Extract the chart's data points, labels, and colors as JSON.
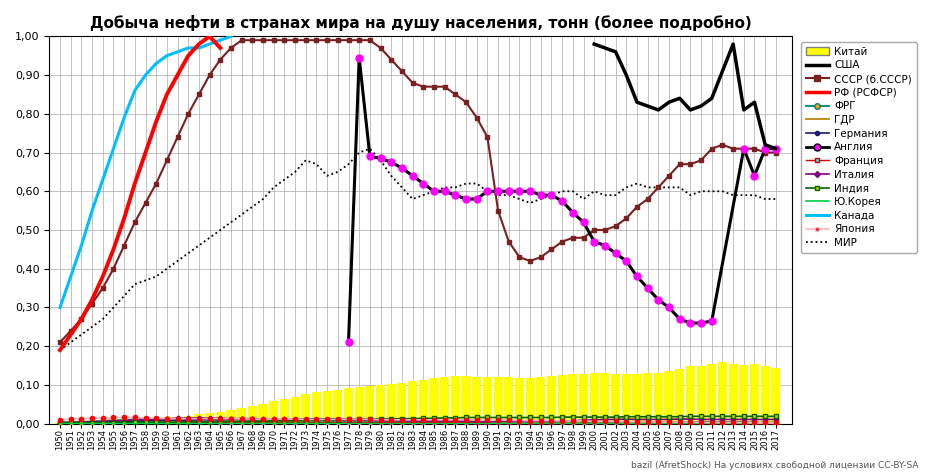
{
  "title": "Добыча нефти в странах мира на душу населения, тонн (более подробно)",
  "years": [
    1950,
    1951,
    1952,
    1953,
    1954,
    1955,
    1956,
    1957,
    1958,
    1959,
    1960,
    1961,
    1962,
    1963,
    1964,
    1965,
    1966,
    1967,
    1968,
    1969,
    1970,
    1971,
    1972,
    1973,
    1974,
    1975,
    1976,
    1977,
    1978,
    1979,
    1980,
    1981,
    1982,
    1983,
    1984,
    1985,
    1986,
    1987,
    1988,
    1989,
    1990,
    1991,
    1992,
    1993,
    1994,
    1995,
    1996,
    1997,
    1998,
    1999,
    2000,
    2001,
    2002,
    2003,
    2004,
    2005,
    2006,
    2007,
    2008,
    2009,
    2010,
    2011,
    2012,
    2013,
    2014,
    2015,
    2016,
    2017
  ],
  "china_bars": [
    0.003,
    0.004,
    0.005,
    0.006,
    0.008,
    0.009,
    0.011,
    0.013,
    0.013,
    0.013,
    0.015,
    0.018,
    0.021,
    0.025,
    0.027,
    0.031,
    0.036,
    0.04,
    0.046,
    0.052,
    0.058,
    0.064,
    0.07,
    0.077,
    0.083,
    0.084,
    0.087,
    0.091,
    0.094,
    0.098,
    0.1,
    0.103,
    0.106,
    0.109,
    0.113,
    0.117,
    0.12,
    0.122,
    0.122,
    0.121,
    0.12,
    0.12,
    0.12,
    0.117,
    0.117,
    0.12,
    0.123,
    0.125,
    0.127,
    0.127,
    0.13,
    0.13,
    0.128,
    0.127,
    0.127,
    0.13,
    0.13,
    0.135,
    0.14,
    0.148,
    0.15,
    0.155,
    0.16,
    0.155,
    0.152,
    0.155,
    0.15,
    0.145
  ],
  "ussr_years": [
    1950,
    1951,
    1952,
    1953,
    1954,
    1955,
    1956,
    1957,
    1958,
    1959,
    1960,
    1961,
    1962,
    1963,
    1964,
    1965,
    1966,
    1967,
    1968,
    1969,
    1970,
    1971,
    1972,
    1973,
    1974,
    1975,
    1976,
    1977,
    1978,
    1979,
    1980,
    1981,
    1982,
    1983,
    1984,
    1985,
    1986,
    1987,
    1988,
    1989,
    1990,
    1991,
    1992,
    1993,
    1994,
    1995,
    1996,
    1997,
    1998,
    1999,
    2000,
    2001,
    2002,
    2003,
    2004,
    2005,
    2006,
    2007,
    2008,
    2009,
    2010,
    2011,
    2012,
    2013,
    2014,
    2015,
    2016,
    2017
  ],
  "ussr_vals": [
    0.21,
    0.24,
    0.27,
    0.31,
    0.35,
    0.4,
    0.46,
    0.52,
    0.57,
    0.62,
    0.68,
    0.74,
    0.8,
    0.85,
    0.9,
    0.94,
    0.97,
    0.99,
    0.99,
    0.99,
    0.99,
    0.99,
    0.99,
    0.99,
    0.99,
    0.99,
    0.99,
    0.99,
    0.99,
    0.99,
    0.97,
    0.94,
    0.91,
    0.88,
    0.87,
    0.87,
    0.87,
    0.85,
    0.83,
    0.79,
    0.74,
    0.55,
    0.47,
    0.43,
    0.42,
    0.43,
    0.45,
    0.47,
    0.48,
    0.48,
    0.5,
    0.5,
    0.51,
    0.53,
    0.56,
    0.58,
    0.61,
    0.64,
    0.67,
    0.67,
    0.68,
    0.71,
    0.72,
    0.71,
    0.71,
    0.71,
    0.7,
    0.7
  ],
  "rf_years": [
    1950,
    1951,
    1952,
    1953,
    1954,
    1955,
    1956,
    1957,
    1958,
    1959,
    1960,
    1961,
    1962,
    1963,
    1964,
    1965
  ],
  "rf_vals": [
    0.19,
    0.23,
    0.27,
    0.32,
    0.38,
    0.45,
    0.53,
    0.62,
    0.7,
    0.78,
    0.85,
    0.9,
    0.95,
    0.98,
    1.0,
    0.97
  ],
  "canada_years": [
    1950,
    1951,
    1952,
    1953,
    1954,
    1955,
    1956,
    1957,
    1958,
    1959,
    1960,
    1961,
    1962,
    1963,
    1964,
    1965,
    1966
  ],
  "canada_vals": [
    0.3,
    0.38,
    0.46,
    0.55,
    0.63,
    0.71,
    0.79,
    0.86,
    0.9,
    0.93,
    0.95,
    0.96,
    0.97,
    0.97,
    0.98,
    0.99,
    1.0
  ],
  "england_years": [
    1977,
    1978,
    1979,
    1980,
    1981,
    1982,
    1983,
    1984,
    1985,
    1986,
    1987,
    1988,
    1989,
    1990,
    1991,
    1992,
    1993,
    1994,
    1995,
    1996,
    1997,
    1998,
    1999,
    2000,
    2001,
    2002,
    2003,
    2004,
    2005,
    2006,
    2007,
    2008,
    2009,
    2010,
    2011,
    2014,
    2015,
    2016,
    2017
  ],
  "england_vals": [
    0.21,
    0.945,
    0.69,
    0.685,
    0.675,
    0.66,
    0.64,
    0.62,
    0.6,
    0.6,
    0.59,
    0.58,
    0.58,
    0.6,
    0.6,
    0.6,
    0.6,
    0.6,
    0.59,
    0.59,
    0.575,
    0.545,
    0.52,
    0.47,
    0.46,
    0.44,
    0.42,
    0.38,
    0.35,
    0.32,
    0.3,
    0.27,
    0.26,
    0.26,
    0.265,
    0.71,
    0.64,
    0.71,
    0.71
  ],
  "world_vals": [
    0.19,
    0.21,
    0.23,
    0.25,
    0.27,
    0.3,
    0.33,
    0.36,
    0.37,
    0.38,
    0.4,
    0.42,
    0.44,
    0.46,
    0.48,
    0.5,
    0.52,
    0.54,
    0.56,
    0.58,
    0.61,
    0.63,
    0.65,
    0.68,
    0.67,
    0.64,
    0.65,
    0.67,
    0.7,
    0.71,
    0.68,
    0.64,
    0.61,
    0.58,
    0.59,
    0.6,
    0.61,
    0.61,
    0.62,
    0.62,
    0.6,
    0.59,
    0.59,
    0.58,
    0.57,
    0.58,
    0.59,
    0.6,
    0.6,
    0.58,
    0.6,
    0.59,
    0.59,
    0.61,
    0.62,
    0.61,
    0.61,
    0.61,
    0.61,
    0.59,
    0.6,
    0.6,
    0.6,
    0.59,
    0.59,
    0.59,
    0.58,
    0.58
  ],
  "frg_years": [
    1952,
    1953,
    1954,
    1955,
    1956,
    1957,
    1958,
    1959,
    1960,
    1961,
    1962,
    1963,
    1964,
    1965,
    1966,
    1967,
    1968,
    1969,
    1970,
    1971,
    1972,
    1973,
    1974,
    1975,
    1976,
    1977,
    1978,
    1979,
    1980,
    1981,
    1982,
    1983,
    1984,
    1985,
    1986,
    1987,
    1988,
    1989,
    1990
  ],
  "frg_vals": [
    0.005,
    0.006,
    0.007,
    0.009,
    0.01,
    0.011,
    0.012,
    0.012,
    0.013,
    0.013,
    0.013,
    0.013,
    0.013,
    0.012,
    0.012,
    0.011,
    0.011,
    0.01,
    0.01,
    0.009,
    0.009,
    0.008,
    0.008,
    0.007,
    0.007,
    0.007,
    0.007,
    0.007,
    0.007,
    0.007,
    0.007,
    0.006,
    0.006,
    0.006,
    0.006,
    0.006,
    0.006,
    0.005,
    0.005
  ],
  "gdr_years": [
    1952,
    1953,
    1954,
    1955,
    1956,
    1957,
    1958,
    1959,
    1960,
    1961,
    1962,
    1963,
    1964,
    1965,
    1966,
    1967,
    1968,
    1969,
    1970,
    1971,
    1972,
    1973,
    1974,
    1975,
    1976,
    1977,
    1978,
    1979,
    1980,
    1981,
    1982,
    1983,
    1984,
    1985,
    1986,
    1987,
    1988,
    1989,
    1990
  ],
  "gdr_vals": [
    0.003,
    0.003,
    0.003,
    0.003,
    0.003,
    0.003,
    0.003,
    0.003,
    0.003,
    0.003,
    0.003,
    0.003,
    0.003,
    0.003,
    0.003,
    0.003,
    0.003,
    0.003,
    0.003,
    0.003,
    0.003,
    0.003,
    0.003,
    0.003,
    0.003,
    0.003,
    0.003,
    0.003,
    0.003,
    0.003,
    0.003,
    0.003,
    0.003,
    0.003,
    0.003,
    0.003,
    0.003,
    0.003,
    0.003
  ],
  "germany_vals": [
    0.003,
    0.003,
    0.004,
    0.004,
    0.005,
    0.006,
    0.006,
    0.007,
    0.007,
    0.008,
    0.008,
    0.009,
    0.009,
    0.01,
    0.01,
    0.01,
    0.011,
    0.011,
    0.011,
    0.011,
    0.012,
    0.012,
    0.012,
    0.012,
    0.012,
    0.012,
    0.012,
    0.011,
    0.011,
    0.011,
    0.011,
    0.01,
    0.01,
    0.01,
    0.009,
    0.009,
    0.009,
    0.008,
    0.008,
    0.008,
    0.007,
    0.007,
    0.007,
    0.007,
    0.007,
    0.006,
    0.006,
    0.006,
    0.006,
    0.005,
    0.005,
    0.005,
    0.005,
    0.005,
    0.005,
    0.005,
    0.004,
    0.004,
    0.004,
    0.004,
    0.004,
    0.004,
    0.004,
    0.004,
    0.004,
    0.003,
    0.003,
    0.003
  ],
  "france_vals": [
    0.001,
    0.001,
    0.001,
    0.001,
    0.001,
    0.001,
    0.001,
    0.001,
    0.001,
    0.001,
    0.002,
    0.002,
    0.002,
    0.002,
    0.002,
    0.002,
    0.002,
    0.002,
    0.002,
    0.002,
    0.002,
    0.002,
    0.002,
    0.002,
    0.002,
    0.002,
    0.002,
    0.002,
    0.002,
    0.002,
    0.002,
    0.002,
    0.002,
    0.002,
    0.002,
    0.002,
    0.002,
    0.002,
    0.002,
    0.002,
    0.002,
    0.001,
    0.001,
    0.001,
    0.001,
    0.001,
    0.001,
    0.001,
    0.001,
    0.001,
    0.001,
    0.001,
    0.001,
    0.001,
    0.001,
    0.001,
    0.001,
    0.001,
    0.001,
    0.001,
    0.001,
    0.001,
    0.001,
    0.001,
    0.001,
    0.001,
    0.001,
    0.001
  ],
  "italy_vals": [
    0.003,
    0.003,
    0.004,
    0.005,
    0.006,
    0.007,
    0.008,
    0.009,
    0.01,
    0.011,
    0.012,
    0.014,
    0.014,
    0.015,
    0.014,
    0.014,
    0.013,
    0.013,
    0.013,
    0.012,
    0.011,
    0.011,
    0.01,
    0.01,
    0.01,
    0.01,
    0.009,
    0.009,
    0.009,
    0.009,
    0.008,
    0.008,
    0.008,
    0.007,
    0.007,
    0.007,
    0.007,
    0.006,
    0.006,
    0.005,
    0.005,
    0.005,
    0.005,
    0.005,
    0.005,
    0.005,
    0.005,
    0.006,
    0.007,
    0.009,
    0.01,
    0.011,
    0.011,
    0.012,
    0.011,
    0.011,
    0.011,
    0.011,
    0.012,
    0.012,
    0.011,
    0.011,
    0.011,
    0.011,
    0.011,
    0.011,
    0.011,
    0.011
  ],
  "india_vals": [
    0.003,
    0.003,
    0.003,
    0.003,
    0.003,
    0.003,
    0.003,
    0.004,
    0.004,
    0.004,
    0.004,
    0.004,
    0.005,
    0.005,
    0.005,
    0.006,
    0.006,
    0.006,
    0.006,
    0.006,
    0.007,
    0.007,
    0.007,
    0.008,
    0.008,
    0.009,
    0.01,
    0.011,
    0.011,
    0.011,
    0.012,
    0.012,
    0.013,
    0.013,
    0.014,
    0.014,
    0.015,
    0.015,
    0.016,
    0.016,
    0.016,
    0.016,
    0.016,
    0.016,
    0.016,
    0.016,
    0.016,
    0.017,
    0.017,
    0.017,
    0.017,
    0.017,
    0.017,
    0.018,
    0.018,
    0.018,
    0.018,
    0.018,
    0.018,
    0.019,
    0.019,
    0.019,
    0.019,
    0.019,
    0.019,
    0.019,
    0.019,
    0.019
  ],
  "skorea_vals": [
    0.0,
    0.0,
    0.0,
    0.0,
    0.0,
    0.0,
    0.0,
    0.0,
    0.0,
    0.0,
    0.0,
    0.0,
    0.0,
    0.0,
    0.0,
    0.0,
    0.0,
    0.0,
    0.0,
    0.0,
    0.0,
    0.0,
    0.0,
    0.0,
    0.0,
    0.0,
    0.0,
    0.0,
    0.0,
    0.0,
    0.0,
    0.0,
    0.0,
    0.0,
    0.0,
    0.0,
    0.0,
    0.0,
    0.0,
    0.0,
    0.0,
    0.001,
    0.001,
    0.001,
    0.001,
    0.001,
    0.001,
    0.001,
    0.001,
    0.001,
    0.001,
    0.001,
    0.001,
    0.001,
    0.001,
    0.001,
    0.001,
    0.001,
    0.001,
    0.001,
    0.001,
    0.001,
    0.001,
    0.001,
    0.001,
    0.001,
    0.001,
    0.001
  ],
  "japan_vals": [
    0.01,
    0.012,
    0.013,
    0.014,
    0.015,
    0.016,
    0.016,
    0.016,
    0.015,
    0.014,
    0.013,
    0.013,
    0.013,
    0.013,
    0.013,
    0.013,
    0.013,
    0.012,
    0.012,
    0.012,
    0.012,
    0.012,
    0.012,
    0.011,
    0.011,
    0.011,
    0.011,
    0.011,
    0.011,
    0.011,
    0.01,
    0.01,
    0.01,
    0.01,
    0.01,
    0.01,
    0.01,
    0.01,
    0.01,
    0.009,
    0.009,
    0.009,
    0.009,
    0.008,
    0.008,
    0.008,
    0.008,
    0.007,
    0.007,
    0.007,
    0.006,
    0.006,
    0.006,
    0.005,
    0.005,
    0.005,
    0.004,
    0.004,
    0.004,
    0.004,
    0.003,
    0.003,
    0.003,
    0.003,
    0.003,
    0.002,
    0.002,
    0.002
  ],
  "footnote": "bazil (AfretShock) На условиях свободной лицензии CC-BY-SA",
  "legend_labels": [
    "Китай",
    "США",
    "СССР (б.СССР)",
    "РФ (РСФСР)",
    "ФРГ",
    "ГДР",
    "Германия",
    "Англия",
    "Франция",
    "Италия",
    "Индия",
    "Ю.Корея",
    "Канада",
    "Япония",
    "МИР"
  ]
}
